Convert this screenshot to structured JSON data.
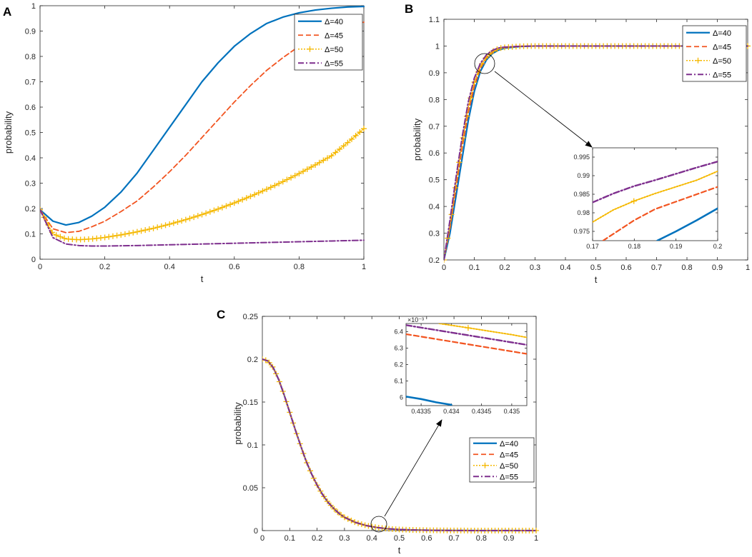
{
  "series_styles": [
    {
      "name": "Δ=40",
      "color": "#0072BD",
      "dash": "",
      "marker": "",
      "width": 2.2
    },
    {
      "name": "Δ=45",
      "color": "#F25420",
      "dash": "7,4",
      "marker": "",
      "width": 1.8
    },
    {
      "name": "Δ=50",
      "color": "#F5B800",
      "dash": "2,2",
      "marker": "plus",
      "width": 1.6
    },
    {
      "name": "Δ=55",
      "color": "#7E2F8E",
      "dash": "8,3,2,3",
      "marker": "",
      "width": 2.0
    }
  ],
  "chart_data": [
    {
      "panel_label": "A",
      "type": "line",
      "xlabel": "t",
      "ylabel": "probability",
      "xlim": [
        0,
        1
      ],
      "ylim": [
        0,
        1
      ],
      "xticks": [
        "0",
        "0.2",
        "0.4",
        "0.6",
        "0.8",
        "1"
      ],
      "xtick_values": [
        0,
        0.2,
        0.4,
        0.6,
        0.8,
        1
      ],
      "yticks": [
        "0",
        "0.1",
        "0.2",
        "0.3",
        "0.4",
        "0.5",
        "0.6",
        "0.7",
        "0.8",
        "0.9",
        "1"
      ],
      "ytick_values": [
        0,
        0.1,
        0.2,
        0.3,
        0.4,
        0.5,
        0.6,
        0.7,
        0.8,
        0.9,
        1
      ],
      "legend_position": "top-right",
      "series": [
        {
          "name": "Δ=40",
          "x": [
            0,
            0.04,
            0.08,
            0.12,
            0.16,
            0.2,
            0.25,
            0.3,
            0.35,
            0.4,
            0.45,
            0.5,
            0.55,
            0.6,
            0.65,
            0.7,
            0.75,
            0.8,
            0.85,
            0.9,
            0.95,
            1
          ],
          "y": [
            0.195,
            0.15,
            0.135,
            0.145,
            0.17,
            0.205,
            0.265,
            0.34,
            0.43,
            0.52,
            0.61,
            0.7,
            0.775,
            0.84,
            0.89,
            0.93,
            0.955,
            0.972,
            0.983,
            0.99,
            0.995,
            0.997
          ]
        },
        {
          "name": "Δ=45",
          "x": [
            0,
            0.04,
            0.08,
            0.12,
            0.16,
            0.2,
            0.25,
            0.3,
            0.35,
            0.4,
            0.45,
            0.5,
            0.55,
            0.6,
            0.65,
            0.7,
            0.75,
            0.8,
            0.85,
            0.9,
            0.95,
            1
          ],
          "y": [
            0.195,
            0.12,
            0.105,
            0.11,
            0.128,
            0.15,
            0.188,
            0.23,
            0.285,
            0.345,
            0.41,
            0.48,
            0.55,
            0.62,
            0.685,
            0.745,
            0.795,
            0.84,
            0.875,
            0.9,
            0.92,
            0.935
          ]
        },
        {
          "name": "Δ=50",
          "x": [
            0,
            0.04,
            0.08,
            0.12,
            0.16,
            0.2,
            0.25,
            0.3,
            0.35,
            0.4,
            0.45,
            0.5,
            0.55,
            0.6,
            0.65,
            0.7,
            0.75,
            0.8,
            0.85,
            0.9,
            0.95,
            1
          ],
          "y": [
            0.195,
            0.1,
            0.08,
            0.077,
            0.08,
            0.086,
            0.096,
            0.108,
            0.122,
            0.138,
            0.156,
            0.176,
            0.198,
            0.222,
            0.248,
            0.276,
            0.306,
            0.338,
            0.372,
            0.408,
            0.46,
            0.515
          ]
        },
        {
          "name": "Δ=55",
          "x": [
            0,
            0.04,
            0.08,
            0.12,
            0.16,
            0.2,
            0.3,
            0.4,
            0.5,
            0.6,
            0.7,
            0.8,
            0.9,
            1
          ],
          "y": [
            0.195,
            0.085,
            0.06,
            0.054,
            0.052,
            0.052,
            0.054,
            0.057,
            0.06,
            0.063,
            0.066,
            0.069,
            0.072,
            0.075
          ]
        }
      ]
    },
    {
      "panel_label": "B",
      "type": "line",
      "xlabel": "t",
      "ylabel": "probability",
      "xlim": [
        0,
        1
      ],
      "ylim": [
        0.2,
        1.1
      ],
      "xticks": [
        "0",
        "0.1",
        "0.2",
        "0.3",
        "0.4",
        "0.5",
        "0.6",
        "0.7",
        "0.8",
        "0.9",
        "1"
      ],
      "xtick_values": [
        0,
        0.1,
        0.2,
        0.3,
        0.4,
        0.5,
        0.6,
        0.7,
        0.8,
        0.9,
        1
      ],
      "yticks": [
        "0.2",
        "0.3",
        "0.4",
        "0.5",
        "0.6",
        "0.7",
        "0.8",
        "0.9",
        "1",
        "1.1"
      ],
      "ytick_values": [
        0.2,
        0.3,
        0.4,
        0.5,
        0.6,
        0.7,
        0.8,
        0.9,
        1,
        1.1
      ],
      "legend_position": "top-right",
      "series": [
        {
          "name": "Δ=40",
          "x": [
            0,
            0.02,
            0.04,
            0.06,
            0.08,
            0.1,
            0.12,
            0.14,
            0.16,
            0.18,
            0.2,
            0.25,
            0.3,
            0.4,
            0.6,
            0.8,
            1
          ],
          "y": [
            0.2,
            0.3,
            0.44,
            0.58,
            0.72,
            0.83,
            0.905,
            0.948,
            0.972,
            0.985,
            0.992,
            0.998,
            1,
            1,
            1,
            1,
            1
          ]
        },
        {
          "name": "Δ=45",
          "x": [
            0,
            0.02,
            0.04,
            0.06,
            0.08,
            0.1,
            0.12,
            0.14,
            0.16,
            0.18,
            0.2,
            0.25,
            0.3,
            0.4,
            0.6,
            0.8,
            1
          ],
          "y": [
            0.2,
            0.32,
            0.47,
            0.62,
            0.75,
            0.85,
            0.915,
            0.955,
            0.977,
            0.989,
            0.994,
            0.999,
            1,
            1,
            1,
            1,
            1
          ]
        },
        {
          "name": "Δ=50",
          "x": [
            0,
            0.02,
            0.04,
            0.06,
            0.08,
            0.1,
            0.12,
            0.14,
            0.16,
            0.18,
            0.2,
            0.25,
            0.3,
            0.4,
            0.6,
            0.8,
            1
          ],
          "y": [
            0.2,
            0.33,
            0.49,
            0.64,
            0.77,
            0.865,
            0.925,
            0.96,
            0.98,
            0.991,
            0.995,
            0.999,
            1,
            1,
            1,
            1,
            1
          ]
        },
        {
          "name": "Δ=55",
          "x": [
            0,
            0.02,
            0.04,
            0.06,
            0.08,
            0.1,
            0.12,
            0.14,
            0.16,
            0.18,
            0.2,
            0.25,
            0.3,
            0.4,
            0.6,
            0.8,
            1
          ],
          "y": [
            0.2,
            0.35,
            0.51,
            0.66,
            0.79,
            0.88,
            0.935,
            0.967,
            0.984,
            0.993,
            0.996,
            0.999,
            1,
            1,
            1,
            1,
            1
          ]
        }
      ],
      "inset": {
        "xlim": [
          0.17,
          0.2
        ],
        "ylim": [
          0.9725,
          0.9975
        ],
        "xticks": [
          "0.17",
          "0.18",
          "0.19",
          "0.2"
        ],
        "xtick_values": [
          0.17,
          0.18,
          0.19,
          0.2
        ],
        "yticks": [
          "0.975",
          "0.98",
          "0.985",
          "0.99",
          "0.995"
        ],
        "ytick_values": [
          0.975,
          0.98,
          0.985,
          0.99,
          0.995
        ],
        "series": [
          {
            "name": "Δ=40",
            "x": [
              0.1855,
              0.19,
              0.195,
              0.2
            ],
            "y": [
              0.9725,
              0.975,
              0.978,
              0.9812
            ]
          },
          {
            "name": "Δ=45",
            "x": [
              0.1725,
              0.18,
              0.185,
              0.19,
              0.195,
              0.2
            ],
            "y": [
              0.9725,
              0.978,
              0.981,
              0.983,
              0.985,
              0.987
            ]
          },
          {
            "name": "Δ=50",
            "x": [
              0.17,
              0.175,
              0.18,
              0.185,
              0.19,
              0.195,
              0.2
            ],
            "y": [
              0.9775,
              0.9808,
              0.9832,
              0.9852,
              0.987,
              0.9888,
              0.9912
            ]
          },
          {
            "name": "Δ=55",
            "x": [
              0.17,
              0.175,
              0.18,
              0.185,
              0.19,
              0.195,
              0.2
            ],
            "y": [
              0.9828,
              0.9852,
              0.9872,
              0.9888,
              0.9905,
              0.9922,
              0.9938
            ]
          }
        ]
      }
    },
    {
      "panel_label": "C",
      "type": "line",
      "xlabel": "t",
      "ylabel": "probability",
      "xlim": [
        0,
        1
      ],
      "ylim": [
        0,
        0.25
      ],
      "xticks": [
        "0",
        "0.1",
        "0.2",
        "0.3",
        "0.4",
        "0.5",
        "0.6",
        "0.7",
        "0.8",
        "0.9",
        "1"
      ],
      "xtick_values": [
        0,
        0.1,
        0.2,
        0.3,
        0.4,
        0.5,
        0.6,
        0.7,
        0.8,
        0.9,
        1
      ],
      "yticks": [
        "0",
        "0.05",
        "0.1",
        "0.15",
        "0.2",
        "0.25"
      ],
      "ytick_values": [
        0,
        0.05,
        0.1,
        0.15,
        0.2,
        0.25
      ],
      "legend_position": "bottom-right",
      "series": [
        {
          "name": "Δ=40",
          "x": [
            0,
            0.02,
            0.04,
            0.06,
            0.08,
            0.1,
            0.12,
            0.14,
            0.16,
            0.18,
            0.2,
            0.22,
            0.24,
            0.26,
            0.28,
            0.3,
            0.34,
            0.38,
            0.42,
            0.46,
            0.5,
            0.55,
            0.6,
            0.7,
            0.8,
            0.9,
            1
          ],
          "y": [
            0.2,
            0.198,
            0.19,
            0.176,
            0.158,
            0.138,
            0.118,
            0.099,
            0.081,
            0.066,
            0.053,
            0.042,
            0.033,
            0.026,
            0.02,
            0.0155,
            0.0095,
            0.0058,
            0.0035,
            0.0021,
            0.0013,
            0.0007,
            0.0004,
            0.0001,
            0,
            0,
            0
          ]
        },
        {
          "name": "Δ=45",
          "x": [
            0,
            0.02,
            0.04,
            0.06,
            0.08,
            0.1,
            0.12,
            0.14,
            0.16,
            0.18,
            0.2,
            0.22,
            0.24,
            0.26,
            0.28,
            0.3,
            0.34,
            0.38,
            0.42,
            0.46,
            0.5,
            0.55,
            0.6,
            0.7,
            0.8,
            0.9,
            1
          ],
          "y": [
            0.2,
            0.198,
            0.19,
            0.176,
            0.158,
            0.138,
            0.118,
            0.099,
            0.081,
            0.066,
            0.053,
            0.042,
            0.033,
            0.026,
            0.02,
            0.0155,
            0.0095,
            0.0058,
            0.0035,
            0.0021,
            0.0013,
            0.0007,
            0.0004,
            0.0001,
            0,
            0,
            0
          ]
        },
        {
          "name": "Δ=50",
          "x": [
            0,
            0.02,
            0.04,
            0.06,
            0.08,
            0.1,
            0.12,
            0.14,
            0.16,
            0.18,
            0.2,
            0.22,
            0.24,
            0.26,
            0.28,
            0.3,
            0.34,
            0.38,
            0.42,
            0.46,
            0.5,
            0.55,
            0.6,
            0.7,
            0.8,
            0.9,
            1
          ],
          "y": [
            0.2,
            0.198,
            0.19,
            0.176,
            0.158,
            0.138,
            0.118,
            0.099,
            0.081,
            0.066,
            0.053,
            0.042,
            0.033,
            0.026,
            0.02,
            0.0155,
            0.0095,
            0.0058,
            0.0035,
            0.0021,
            0.0013,
            0.0007,
            0.0004,
            0.0001,
            0,
            0,
            0
          ]
        },
        {
          "name": "Δ=55",
          "x": [
            0,
            0.02,
            0.04,
            0.06,
            0.08,
            0.1,
            0.12,
            0.14,
            0.16,
            0.18,
            0.2,
            0.22,
            0.24,
            0.26,
            0.28,
            0.3,
            0.34,
            0.38,
            0.42,
            0.46,
            0.5,
            0.55,
            0.6,
            0.7,
            0.8,
            0.9,
            1
          ],
          "y": [
            0.2,
            0.198,
            0.19,
            0.176,
            0.158,
            0.138,
            0.118,
            0.099,
            0.081,
            0.066,
            0.053,
            0.042,
            0.033,
            0.026,
            0.02,
            0.0155,
            0.0095,
            0.0058,
            0.0035,
            0.0021,
            0.0013,
            0.0007,
            0.0004,
            0.0001,
            0,
            0,
            0
          ]
        }
      ],
      "inset": {
        "xlim": [
          0.43325,
          0.43525
        ],
        "ylim": [
          5.95,
          6.45
        ],
        "exponent_label": "×10⁻³",
        "xticks": [
          "0.4335",
          "0.434",
          "0.4345",
          "0.435"
        ],
        "xtick_values": [
          0.4335,
          0.434,
          0.4345,
          0.435
        ],
        "yticks": [
          "6",
          "6.1",
          "6.2",
          "6.3",
          "6.4"
        ],
        "ytick_values": [
          6,
          6.1,
          6.2,
          6.3,
          6.4
        ],
        "series": [
          {
            "name": "Δ=40",
            "x": [
              0.43325,
              0.4335,
              0.43375,
              0.434
            ],
            "y": [
              6.005,
              5.99,
              5.97,
              5.955
            ]
          },
          {
            "name": "Δ=45",
            "x": [
              0.43325,
              0.4335,
              0.434,
              0.4345,
              0.435,
              0.43525
            ],
            "y": [
              6.385,
              6.37,
              6.34,
              6.31,
              6.28,
              6.265
            ]
          },
          {
            "name": "Δ=50",
            "x": [
              0.4338,
              0.4342,
              0.4346,
              0.435,
              0.43525
            ],
            "y": [
              6.45,
              6.428,
              6.405,
              6.382,
              6.365
            ]
          },
          {
            "name": "Δ=55",
            "x": [
              0.43325,
              0.4335,
              0.434,
              0.4345,
              0.435,
              0.43525
            ],
            "y": [
              6.44,
              6.425,
              6.395,
              6.365,
              6.335,
              6.32
            ]
          }
        ]
      }
    }
  ]
}
